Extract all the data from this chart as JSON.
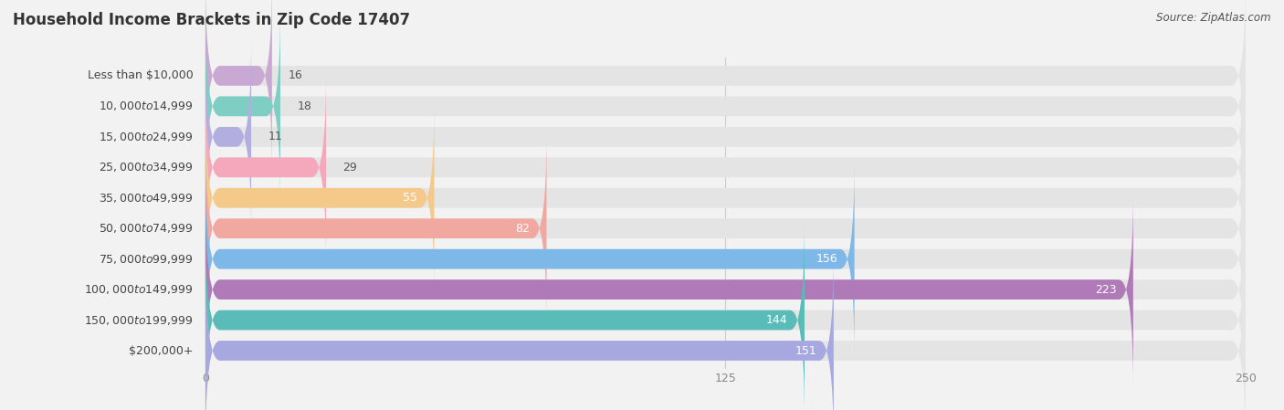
{
  "title": "Household Income Brackets in Zip Code 17407",
  "source": "Source: ZipAtlas.com",
  "categories": [
    "Less than $10,000",
    "$10,000 to $14,999",
    "$15,000 to $24,999",
    "$25,000 to $34,999",
    "$35,000 to $49,999",
    "$50,000 to $74,999",
    "$75,000 to $99,999",
    "$100,000 to $149,999",
    "$150,000 to $199,999",
    "$200,000+"
  ],
  "values": [
    16,
    18,
    11,
    29,
    55,
    82,
    156,
    223,
    144,
    151
  ],
  "bar_colors": [
    "#c9a8d4",
    "#7ecec4",
    "#b3aee0",
    "#f5a8bc",
    "#f5c98a",
    "#f0a8a0",
    "#7eb8e8",
    "#b07ab8",
    "#5abcb8",
    "#a8a8e0"
  ],
  "background_color": "#f2f2f2",
  "bar_background_color": "#e4e4e4",
  "xlim": [
    0,
    250
  ],
  "xticks": [
    0,
    125,
    250
  ],
  "title_fontsize": 12,
  "label_fontsize": 9,
  "value_fontsize": 9,
  "source_fontsize": 8.5,
  "value_threshold": 50
}
